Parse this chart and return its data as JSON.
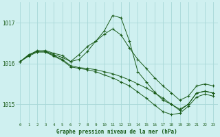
{
  "title": "Graphe pression niveau de la mer (hPa)",
  "bg_color": "#cff0f0",
  "grid_color": "#a8d8d8",
  "line_color": "#1a5c1a",
  "xlim": [
    -0.5,
    23.5
  ],
  "ylim": [
    1014.55,
    1017.5
  ],
  "yticks": [
    1015,
    1016,
    1017
  ],
  "xticks": [
    0,
    1,
    2,
    3,
    4,
    5,
    6,
    7,
    8,
    9,
    10,
    11,
    12,
    13,
    14,
    15,
    16,
    17,
    18,
    19,
    20,
    21,
    22,
    23
  ],
  "series": [
    {
      "x": [
        0,
        1,
        2,
        3,
        4,
        5,
        6,
        7,
        8,
        9,
        10,
        11,
        12,
        13,
        14,
        15,
        16,
        17,
        18,
        19,
        20,
        21,
        22,
        23
      ],
      "y": [
        1016.05,
        1016.22,
        1016.3,
        1016.32,
        1016.25,
        1016.2,
        1016.05,
        1016.1,
        1016.3,
        1016.55,
        1016.8,
        1017.18,
        1017.12,
        1016.55,
        1015.8,
        1015.55,
        1015.3,
        1015.1,
        1015.0,
        1014.85,
        1015.0,
        1015.28,
        1015.32,
        1015.28
      ]
    },
    {
      "x": [
        0,
        1,
        2,
        3,
        4,
        5,
        6,
        7,
        8,
        9,
        10,
        11,
        12,
        13,
        14,
        15,
        16,
        17,
        18,
        19,
        20,
        21,
        22,
        23
      ],
      "y": [
        1016.05,
        1016.2,
        1016.3,
        1016.3,
        1016.22,
        1016.15,
        1016.05,
        1016.22,
        1016.42,
        1016.55,
        1016.72,
        1016.85,
        1016.7,
        1016.38,
        1016.1,
        1015.88,
        1015.65,
        1015.45,
        1015.28,
        1015.1,
        1015.2,
        1015.45,
        1015.5,
        1015.45
      ]
    },
    {
      "x": [
        0,
        1,
        2,
        3,
        4,
        5,
        6,
        7,
        8,
        9,
        10,
        11,
        12,
        13,
        14,
        15,
        16,
        17,
        18,
        19,
        20,
        21,
        22,
        23
      ],
      "y": [
        1016.05,
        1016.2,
        1016.32,
        1016.3,
        1016.2,
        1016.1,
        1015.95,
        1015.9,
        1015.88,
        1015.85,
        1015.8,
        1015.75,
        1015.68,
        1015.6,
        1015.5,
        1015.4,
        1015.28,
        1015.15,
        1015.0,
        1014.88,
        1015.0,
        1015.28,
        1015.32,
        1015.28
      ]
    },
    {
      "x": [
        0,
        1,
        2,
        3,
        4,
        5,
        6,
        7,
        8,
        9,
        10,
        11,
        12,
        13,
        14,
        15,
        16,
        17,
        18,
        19,
        20,
        21,
        22,
        23
      ],
      "y": [
        1016.05,
        1016.18,
        1016.28,
        1016.28,
        1016.18,
        1016.08,
        1015.92,
        1015.88,
        1015.85,
        1015.8,
        1015.72,
        1015.65,
        1015.55,
        1015.45,
        1015.3,
        1015.15,
        1014.98,
        1014.82,
        1014.75,
        1014.78,
        1014.95,
        1015.18,
        1015.25,
        1015.2
      ]
    }
  ]
}
